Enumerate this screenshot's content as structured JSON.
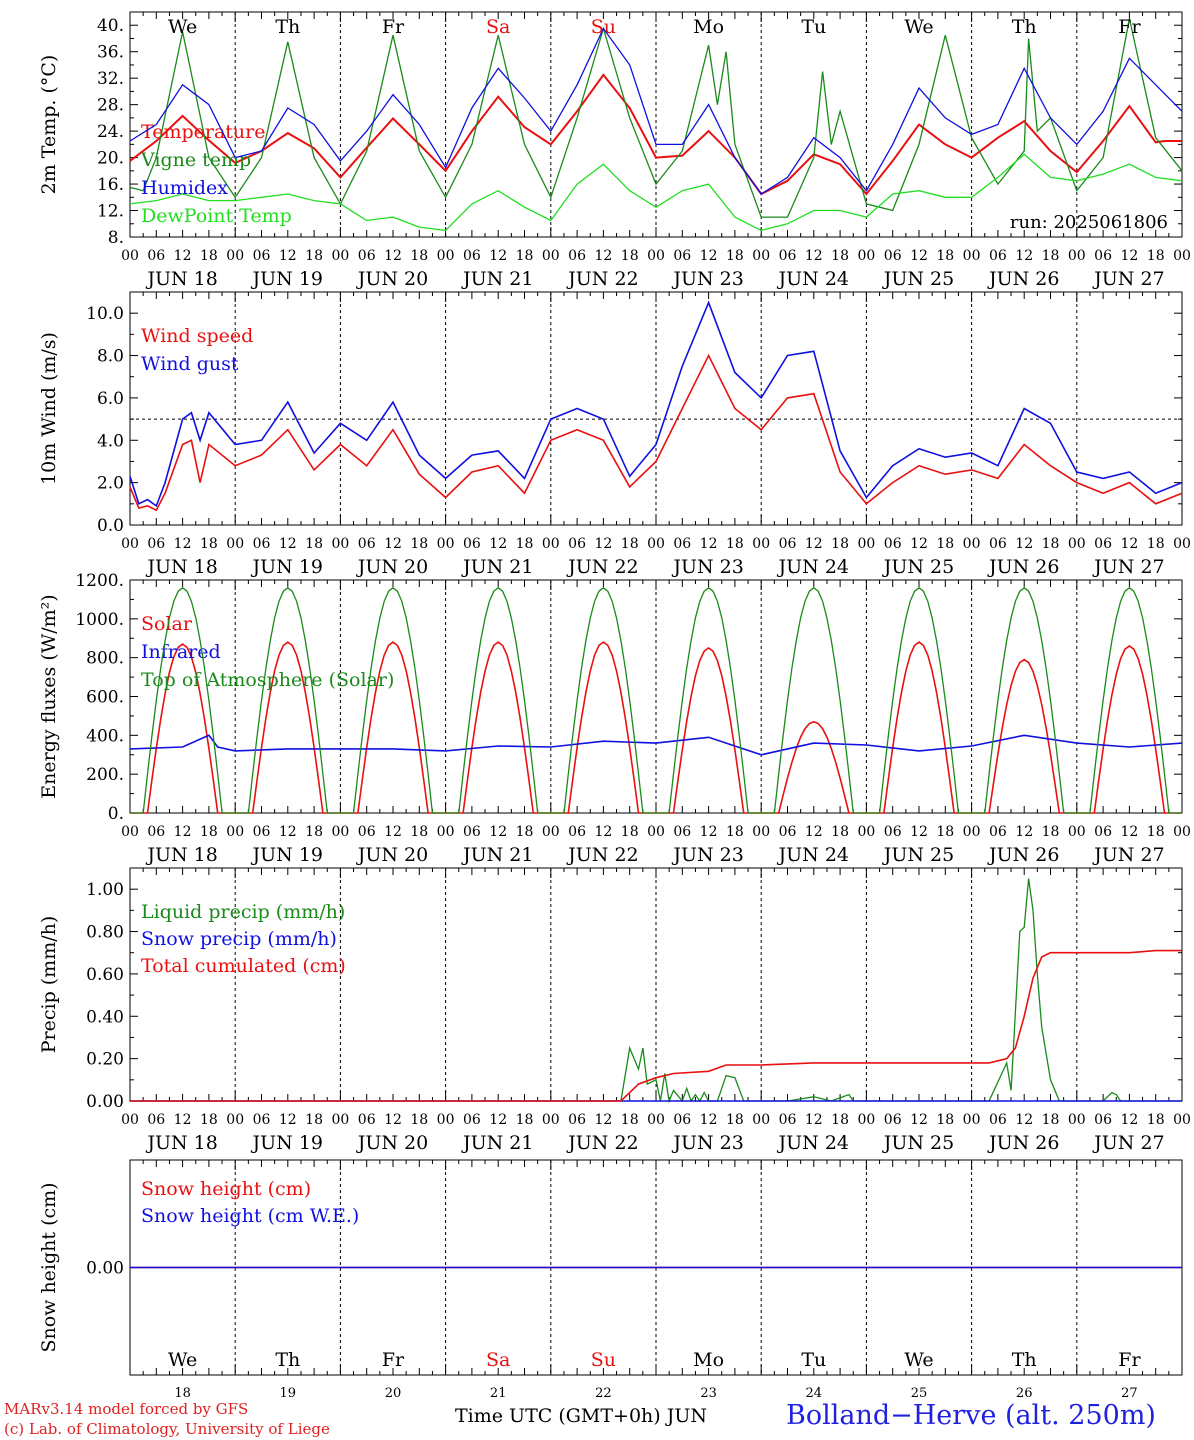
{
  "colors": {
    "red": "#e81010",
    "green": "#1a8a1a",
    "lightgreen": "#22dd22",
    "blue": "#1010e0",
    "axis": "#000000",
    "grid": "#000000"
  },
  "days": {
    "short": [
      "We",
      "Th",
      "Fr",
      "Sa",
      "Su",
      "Mo",
      "Tu",
      "We",
      "Th",
      "Fr"
    ],
    "weekend": [
      false,
      false,
      false,
      true,
      true,
      false,
      false,
      false,
      false,
      false
    ],
    "dates": [
      "JUN 18",
      "JUN 19",
      "JUN 20",
      "JUN 21",
      "JUN 22",
      "JUN 23",
      "JUN 24",
      "JUN 25",
      "JUN 26",
      "JUN 27"
    ],
    "numbers": [
      "18",
      "19",
      "20",
      "21",
      "22",
      "23",
      "24",
      "25",
      "26",
      "27"
    ],
    "hour_ticks": [
      "00",
      "06",
      "12",
      "18"
    ]
  },
  "footer": {
    "credit1": "MARv3.14 model forced by GFS",
    "credit2": "(c) Lab. of Climatology, University of Liege",
    "x_caption": "Time UTC (GMT+0h) JUN",
    "station": "Bolland−Herve (alt. 250m)"
  },
  "chart_data": [
    {
      "id": "temperature",
      "type": "line",
      "ylabel": "2m Temp. (°C)",
      "ylim": [
        8,
        42
      ],
      "yticks": [
        8,
        12,
        16,
        20,
        24,
        28,
        32,
        36,
        40
      ],
      "ytick_labels": [
        "8.",
        "12.",
        "16.",
        "20.",
        "24.",
        "28.",
        "32.",
        "36.",
        "40."
      ],
      "run_label": "run: 2025061806",
      "x_unit": "hours since JUN 18 00 UTC",
      "series": [
        {
          "name": "Temperature",
          "color": "red",
          "x": [
            0,
            6,
            12,
            18,
            24,
            30,
            36,
            42,
            48,
            54,
            60,
            66,
            72,
            78,
            84,
            90,
            96,
            102,
            108,
            114,
            120,
            126,
            132,
            138,
            144,
            150,
            156,
            162,
            168,
            174,
            180,
            186,
            192,
            198,
            204,
            210,
            216,
            222,
            228,
            234,
            236,
            240
          ],
          "y": [
            19.5,
            22.5,
            26.3,
            22.6,
            19.2,
            21,
            23.7,
            21.4,
            17,
            21.5,
            25.9,
            22,
            18,
            24,
            29.2,
            24.6,
            22,
            27,
            32.5,
            27.5,
            20,
            20.3,
            24,
            20,
            14.5,
            16.5,
            20.5,
            19,
            14.5,
            19.5,
            25,
            22,
            20,
            23,
            25.5,
            21,
            17.8,
            22.5,
            27.8,
            22.3,
            22.5,
            22.5
          ]
        },
        {
          "name": "Vigne temp",
          "color": "green",
          "x": [
            0,
            3,
            6,
            12,
            18,
            24,
            30,
            36,
            42,
            48,
            54,
            60,
            66,
            72,
            78,
            84,
            90,
            96,
            102,
            108,
            114,
            120,
            126,
            132,
            134,
            136,
            138,
            144,
            150,
            156,
            158,
            160,
            162,
            168,
            174,
            180,
            186,
            192,
            198,
            204,
            205,
            207,
            210,
            216,
            222,
            228,
            234,
            240
          ],
          "y": [
            15.5,
            15,
            20,
            39,
            20,
            14,
            20,
            37.5,
            20,
            13,
            21,
            38.5,
            21,
            14,
            22,
            38.5,
            22,
            14,
            26,
            39.5,
            26,
            16,
            21,
            37,
            28,
            36,
            22,
            11,
            11,
            20,
            33,
            22,
            27,
            13,
            12,
            22,
            38.5,
            23,
            16,
            21,
            38,
            24,
            26,
            15,
            20,
            41,
            23,
            18
          ]
        },
        {
          "name": "Humidex",
          "color": "blue",
          "x": [
            0,
            6,
            12,
            18,
            24,
            30,
            36,
            42,
            48,
            54,
            60,
            66,
            72,
            78,
            84,
            90,
            96,
            102,
            108,
            114,
            120,
            126,
            132,
            138,
            144,
            150,
            156,
            162,
            168,
            174,
            180,
            186,
            192,
            198,
            204,
            210,
            216,
            222,
            228,
            234,
            240
          ],
          "y": [
            22.5,
            25,
            31,
            28,
            20,
            21,
            27.5,
            25,
            19.5,
            24,
            29.5,
            25,
            18.5,
            27.5,
            33.5,
            29,
            24,
            31,
            39.5,
            34,
            22,
            22,
            28,
            20,
            14.5,
            17,
            23,
            20,
            15,
            22,
            30.5,
            26,
            23.5,
            25,
            33.5,
            26,
            22,
            27,
            35,
            31,
            27
          ]
        },
        {
          "name": "DewPoint Temp",
          "color": "lightgreen",
          "x": [
            0,
            6,
            12,
            18,
            24,
            30,
            36,
            42,
            48,
            54,
            60,
            66,
            72,
            78,
            84,
            90,
            96,
            102,
            108,
            114,
            120,
            126,
            132,
            138,
            144,
            150,
            156,
            162,
            168,
            174,
            180,
            186,
            192,
            198,
            204,
            210,
            216,
            222,
            228,
            234,
            240
          ],
          "y": [
            13,
            13.5,
            14.5,
            13.5,
            13.5,
            14,
            14.5,
            13.5,
            13,
            10.5,
            11,
            9.5,
            9,
            13,
            15,
            12.5,
            10.5,
            16,
            19,
            15,
            12.5,
            15,
            16,
            11,
            9,
            10,
            12,
            12,
            11,
            14.5,
            15,
            14,
            14,
            17,
            20.5,
            17,
            16.5,
            17.5,
            19,
            17,
            16.5
          ]
        }
      ]
    },
    {
      "id": "wind",
      "type": "line",
      "ylabel": "10m Wind (m/s)",
      "ylim": [
        0,
        11
      ],
      "yticks": [
        0,
        2,
        4,
        6,
        8,
        10
      ],
      "ytick_labels": [
        "0.0",
        "2.0",
        "4.0",
        "6.0",
        "8.0",
        "10.0"
      ],
      "reference_line": 5,
      "series": [
        {
          "name": "Wind speed",
          "color": "red",
          "x": [
            0,
            2,
            4,
            6,
            8,
            12,
            14,
            16,
            18,
            24,
            30,
            36,
            42,
            48,
            54,
            60,
            66,
            72,
            78,
            84,
            90,
            96,
            102,
            108,
            114,
            120,
            126,
            132,
            138,
            144,
            150,
            156,
            162,
            168,
            174,
            180,
            186,
            192,
            198,
            204,
            210,
            216,
            222,
            228,
            234,
            240
          ],
          "y": [
            1.8,
            0.8,
            0.9,
            0.7,
            1.5,
            3.8,
            4,
            2,
            3.8,
            2.8,
            3.3,
            4.5,
            2.6,
            3.8,
            2.8,
            4.5,
            2.4,
            1.3,
            2.5,
            2.8,
            1.5,
            4,
            4.5,
            4,
            1.8,
            3,
            5.5,
            8,
            5.5,
            4.5,
            6,
            6.2,
            2.5,
            1,
            2,
            2.8,
            2.4,
            2.6,
            2.2,
            3.8,
            2.8,
            2,
            1.5,
            2,
            1,
            1.5
          ]
        },
        {
          "name": "Wind gust",
          "color": "blue",
          "x": [
            0,
            2,
            4,
            6,
            8,
            12,
            14,
            16,
            18,
            24,
            30,
            36,
            42,
            48,
            54,
            60,
            66,
            72,
            78,
            84,
            90,
            96,
            102,
            108,
            114,
            120,
            126,
            132,
            138,
            144,
            150,
            156,
            162,
            168,
            174,
            180,
            186,
            192,
            198,
            204,
            210,
            216,
            222,
            228,
            234,
            240
          ],
          "y": [
            2.3,
            1,
            1.2,
            0.9,
            2,
            5,
            5.3,
            4,
            5.3,
            3.8,
            4,
            5.8,
            3.4,
            4.8,
            4,
            5.8,
            3.3,
            2.2,
            3.3,
            3.5,
            2.2,
            5,
            5.5,
            5,
            2.3,
            3.8,
            7.5,
            10.5,
            7.2,
            6,
            8,
            8.2,
            3.5,
            1.3,
            2.8,
            3.6,
            3.2,
            3.4,
            2.8,
            5.5,
            4.8,
            2.5,
            2.2,
            2.5,
            1.5,
            2
          ]
        }
      ]
    },
    {
      "id": "energy",
      "type": "line",
      "ylabel": "Energy fluxes (W/m²)",
      "ylim": [
        0,
        1200
      ],
      "yticks": [
        0,
        200,
        400,
        600,
        800,
        1000,
        1200
      ],
      "ytick_labels": [
        "0.",
        "200.",
        "400.",
        "600.",
        "800.",
        "1000.",
        "1200."
      ],
      "series": [
        {
          "name": "Solar",
          "color": "red",
          "diurnal": {
            "sunrise": 4,
            "sunset": 20,
            "noon": 12
          },
          "daily_peak": [
            870,
            880,
            880,
            880,
            880,
            850,
            470,
            880,
            790,
            860
          ]
        },
        {
          "name": "Infrared",
          "color": "blue",
          "x": [
            0,
            12,
            18,
            20,
            24,
            36,
            48,
            60,
            72,
            84,
            96,
            108,
            120,
            132,
            144,
            156,
            168,
            180,
            192,
            204,
            216,
            228,
            240
          ],
          "y": [
            330,
            340,
            400,
            340,
            320,
            330,
            330,
            330,
            320,
            345,
            340,
            370,
            360,
            390,
            300,
            360,
            350,
            320,
            345,
            400,
            360,
            340,
            360
          ]
        },
        {
          "name": "Top of Atmosphere (Solar)",
          "color": "green",
          "diurnal": {
            "sunrise": 3,
            "sunset": 21,
            "noon": 12
          },
          "daily_peak": [
            1160,
            1160,
            1160,
            1160,
            1160,
            1160,
            1160,
            1160,
            1160,
            1160
          ]
        }
      ]
    },
    {
      "id": "precip",
      "type": "line",
      "ylabel": "Precip (mm/h)",
      "ylim": [
        0,
        1.1
      ],
      "yticks": [
        0,
        0.2,
        0.4,
        0.6,
        0.8,
        1.0
      ],
      "ytick_labels": [
        "0.00",
        "0.20",
        "0.40",
        "0.60",
        "0.80",
        "1.00"
      ],
      "series": [
        {
          "name": "Liquid precip (mm/h)",
          "color": "green",
          "x": [
            0,
            112,
            114,
            116,
            117,
            118,
            120,
            121,
            122,
            123,
            124,
            126,
            127,
            128,
            129,
            130,
            131,
            132,
            134,
            136,
            138,
            140,
            142,
            144,
            146,
            150,
            156,
            160,
            164,
            165,
            166,
            174,
            196,
            200,
            201,
            203,
            204,
            205,
            206,
            207,
            208,
            210,
            212,
            216,
            222,
            224,
            225,
            226,
            240
          ],
          "y": [
            0,
            0,
            0.25,
            0.15,
            0.25,
            0.08,
            0.1,
            0,
            0.13,
            0,
            0.05,
            0,
            0.06,
            0,
            0.03,
            0,
            0.04,
            0,
            0,
            0.12,
            0.11,
            0,
            0,
            0,
            0,
            0,
            0.02,
            0,
            0.03,
            0,
            0,
            0,
            0,
            0.18,
            0.05,
            0.8,
            0.82,
            1.05,
            0.9,
            0.6,
            0.35,
            0.1,
            0,
            0,
            0,
            0.04,
            0.03,
            0,
            0
          ]
        },
        {
          "name": "Snow precip (mm/h)",
          "color": "blue",
          "x": [
            0,
            240
          ],
          "y": [
            0,
            0
          ]
        },
        {
          "name": "Total cumulated (cm)",
          "color": "red",
          "x": [
            0,
            112,
            116,
            120,
            124,
            132,
            136,
            144,
            156,
            168,
            180,
            192,
            196,
            200,
            202,
            204,
            206,
            208,
            210,
            216,
            228,
            234,
            240
          ],
          "y": [
            0,
            0,
            0.08,
            0.11,
            0.13,
            0.14,
            0.17,
            0.17,
            0.18,
            0.18,
            0.18,
            0.18,
            0.18,
            0.2,
            0.25,
            0.4,
            0.58,
            0.68,
            0.7,
            0.7,
            0.7,
            0.71,
            0.71
          ]
        }
      ]
    },
    {
      "id": "snow",
      "type": "line",
      "ylabel": "Snow height (cm)",
      "ylim": [
        -1,
        1
      ],
      "yticks": [
        0
      ],
      "ytick_labels": [
        "0.00"
      ],
      "series": [
        {
          "name": "Snow height (cm)",
          "color": "red",
          "x": [
            0,
            240
          ],
          "y": [
            0,
            0
          ]
        },
        {
          "name": "Snow height (cm W.E.)",
          "color": "blue",
          "x": [
            0,
            240
          ],
          "y": [
            0,
            0
          ]
        }
      ]
    }
  ]
}
